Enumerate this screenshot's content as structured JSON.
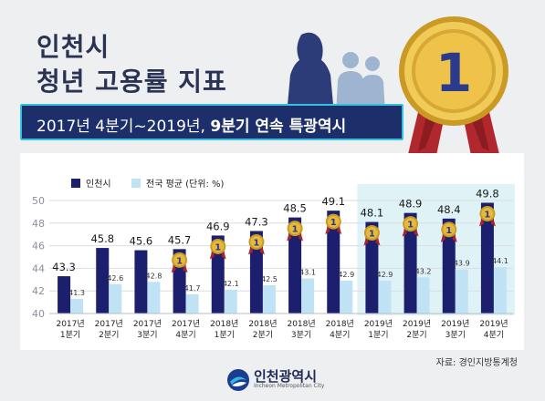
{
  "header": {
    "line1": "인천시",
    "line2": "청년 고용률 지표",
    "banner_prefix": "2017년 4분기~2019년, ",
    "banner_bold": "9분기 연속 특광역시"
  },
  "medal": {
    "label": "1"
  },
  "source": "자료: 경인지방통계청",
  "logo": {
    "name": "인천광역시",
    "sub": "Incheon Metropolitan City"
  },
  "colors": {
    "incheon": "#1c1e6e",
    "national": "#bfe3f4",
    "highlight": "#dff3f6",
    "gold": "#e7b93a",
    "ribbon": "#a5252b"
  },
  "chart_data": {
    "type": "bar",
    "categories": [
      [
        "2017년",
        "1분기"
      ],
      [
        "2017년",
        "2분기"
      ],
      [
        "2017년",
        "3분기"
      ],
      [
        "2017년",
        "4분기"
      ],
      [
        "2018년",
        "1분기"
      ],
      [
        "2018년",
        "2분기"
      ],
      [
        "2018년",
        "3분기"
      ],
      [
        "2018년",
        "4분기"
      ],
      [
        "2019년",
        "1분기"
      ],
      [
        "2019년",
        "2분기"
      ],
      [
        "2019년",
        "3분기"
      ],
      [
        "2019년",
        "4분기"
      ]
    ],
    "series": [
      {
        "name": "인천시",
        "values": [
          43.3,
          45.8,
          45.6,
          45.7,
          46.9,
          47.3,
          48.5,
          49.1,
          48.1,
          48.9,
          48.4,
          49.8
        ]
      },
      {
        "name": "전국 평균 (단위: %)",
        "values": [
          41.3,
          42.6,
          42.8,
          41.7,
          42.1,
          42.5,
          43.1,
          42.9,
          42.9,
          43.2,
          43.9,
          44.1
        ]
      }
    ],
    "medal_flags": [
      false,
      false,
      false,
      true,
      true,
      true,
      true,
      true,
      true,
      true,
      true,
      true
    ],
    "highlight_range": [
      8,
      11
    ],
    "yticks": [
      40,
      42,
      44,
      46,
      48,
      50
    ],
    "ylim": [
      40,
      50
    ],
    "legend_position": "top-left",
    "grid": true
  }
}
